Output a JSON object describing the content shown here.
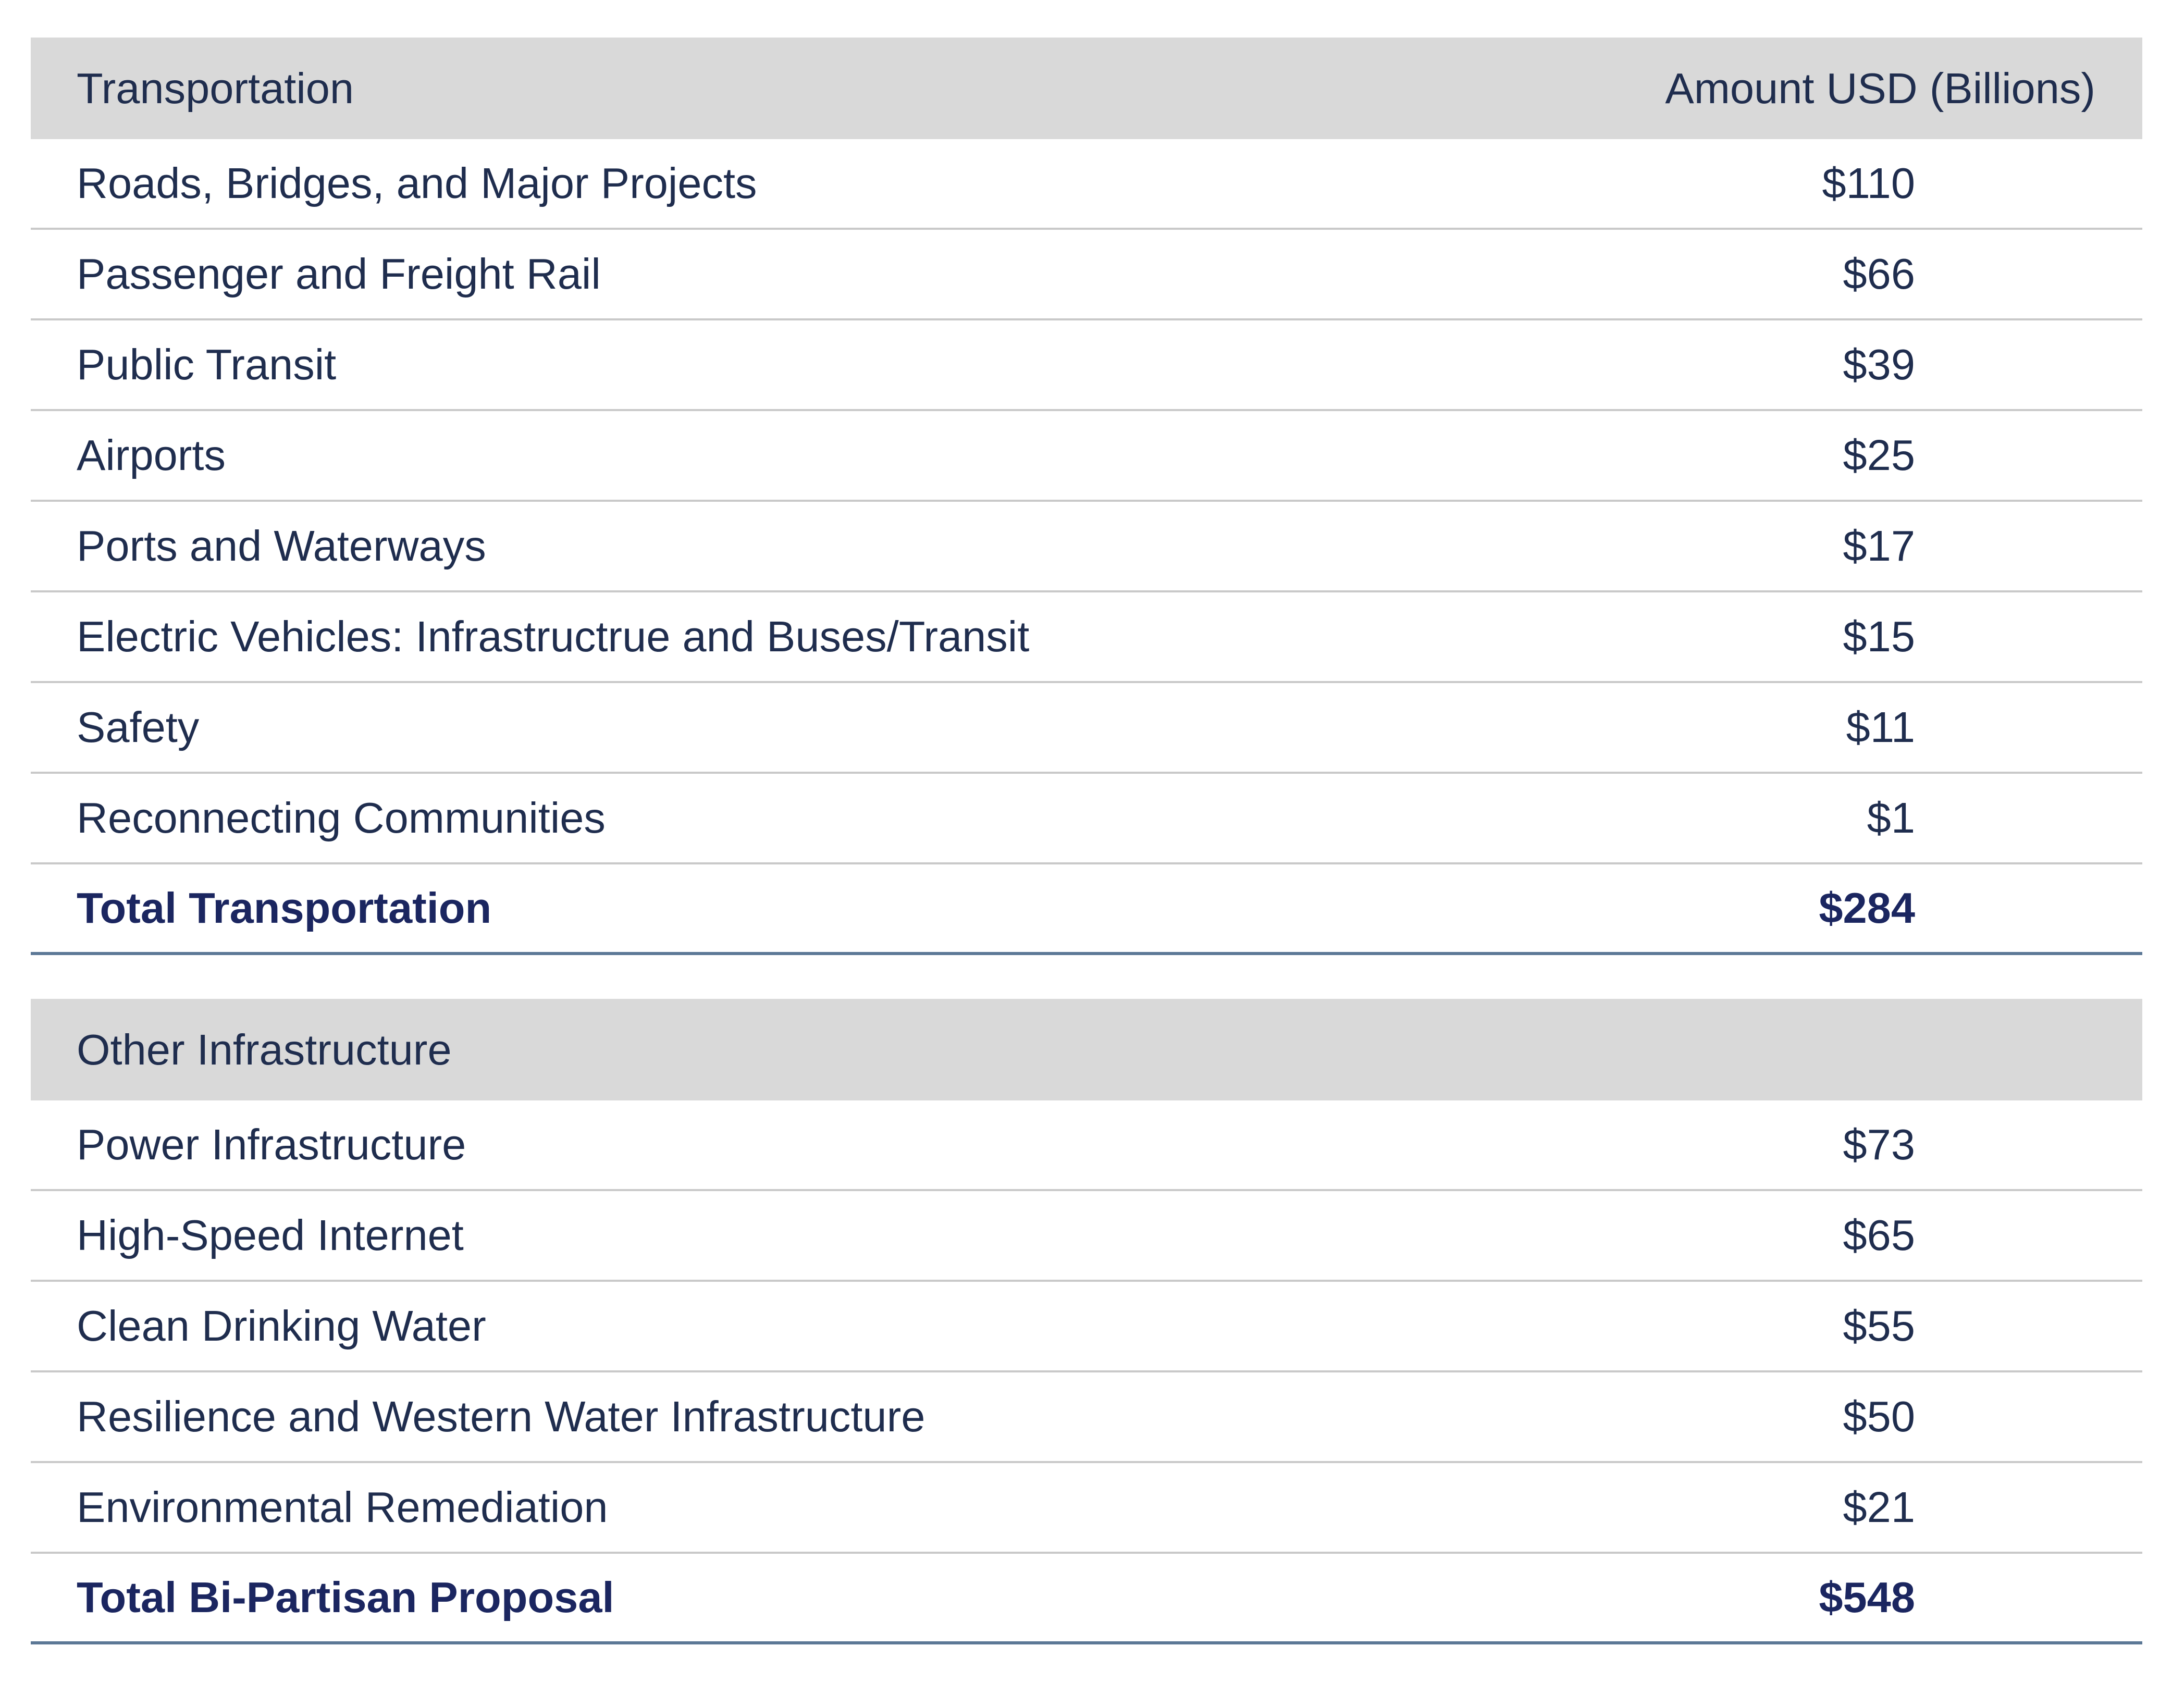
{
  "chart_data": {
    "type": "table",
    "columns": [
      "Transportation",
      "Amount USD (Billions)"
    ],
    "sections": [
      {
        "header": "Transportation",
        "value_header": "Amount USD (Billions)",
        "rows": [
          {
            "label": "Roads, Bridges, and Major Projects",
            "value": "$110"
          },
          {
            "label": "Passenger and Freight Rail",
            "value": "$66"
          },
          {
            "label": "Public Transit",
            "value": "$39"
          },
          {
            "label": "Airports",
            "value": "$25"
          },
          {
            "label": "Ports and Waterways",
            "value": "$17"
          },
          {
            "label": "Electric Vehicles: Infrastructrue and Buses/Transit",
            "value": "$15"
          },
          {
            "label": "Safety",
            "value": "$11"
          },
          {
            "label": "Reconnecting Communities",
            "value": "$1"
          }
        ],
        "total": {
          "label": "Total Transportation",
          "value": "$284"
        }
      },
      {
        "header": "Other Infrastructure",
        "value_header": "",
        "rows": [
          {
            "label": "Power Infrastructure",
            "value": "$73"
          },
          {
            "label": "High-Speed Internet",
            "value": "$65"
          },
          {
            "label": "Clean Drinking Water",
            "value": "$55"
          },
          {
            "label": "Resilience and Western Water Infrastructure",
            "value": "$50"
          },
          {
            "label": "Environmental Remediation",
            "value": "$21"
          }
        ],
        "total": {
          "label": "Total Bi-Partisan Proposal",
          "value": "$548"
        }
      }
    ]
  },
  "colors": {
    "header_bg": "#d9d9d9",
    "text": "#1f2d4e",
    "total_text": "#1b2660",
    "total_rule": "#5c7896",
    "row_rule": "#c9c9c9"
  }
}
